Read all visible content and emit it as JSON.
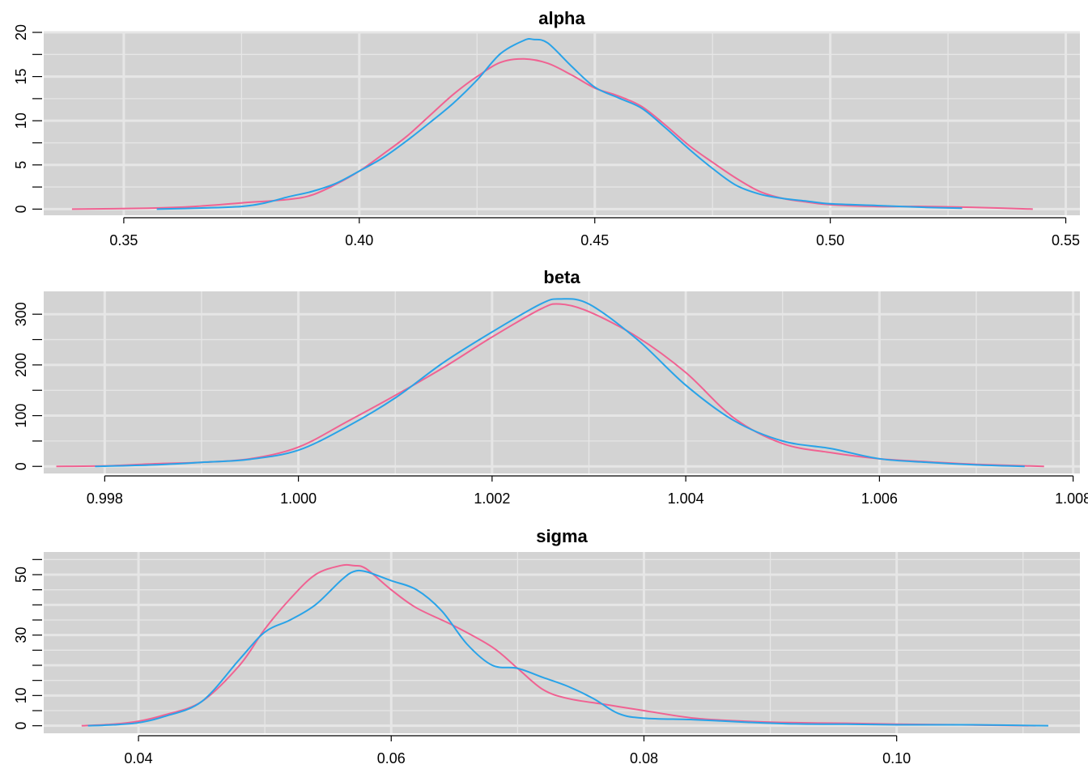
{
  "chart_data": [
    {
      "type": "line",
      "title": "alpha",
      "xlabel": "",
      "ylabel": "",
      "xlim": [
        0.333,
        0.553
      ],
      "ylim": [
        -0.7,
        20.0
      ],
      "x_ticks": [
        0.35,
        0.4,
        0.45,
        0.5,
        0.55
      ],
      "x_tick_labels": [
        "0.35",
        "0.40",
        "0.45",
        "0.50",
        "0.55"
      ],
      "y_ticks": [
        0,
        5,
        10,
        15,
        20
      ],
      "y_tick_labels": [
        "0",
        "5",
        "10",
        "15",
        "20"
      ],
      "grid": true,
      "background": "#d3d3d3",
      "series": [
        {
          "color": "#f06292",
          "x": [
            0.339,
            0.355,
            0.365,
            0.375,
            0.385,
            0.39,
            0.395,
            0.4,
            0.405,
            0.41,
            0.415,
            0.42,
            0.425,
            0.43,
            0.435,
            0.44,
            0.445,
            0.45,
            0.455,
            0.46,
            0.465,
            0.47,
            0.475,
            0.48,
            0.485,
            0.49,
            0.495,
            0.5,
            0.51,
            0.52,
            0.53,
            0.543
          ],
          "values": [
            0.0,
            0.1,
            0.3,
            0.7,
            1.1,
            1.6,
            2.8,
            4.3,
            6.2,
            8.2,
            10.6,
            13.0,
            15.0,
            16.6,
            17.0,
            16.5,
            15.2,
            13.7,
            12.8,
            11.6,
            9.5,
            7.2,
            5.3,
            3.5,
            2.0,
            1.2,
            0.8,
            0.5,
            0.3,
            0.3,
            0.2,
            0.0
          ]
        },
        {
          "color": "#29a3e8",
          "x": [
            0.357,
            0.365,
            0.375,
            0.38,
            0.385,
            0.39,
            0.395,
            0.4,
            0.405,
            0.41,
            0.415,
            0.42,
            0.425,
            0.43,
            0.435,
            0.437,
            0.44,
            0.445,
            0.45,
            0.455,
            0.46,
            0.465,
            0.47,
            0.475,
            0.48,
            0.485,
            0.49,
            0.495,
            0.5,
            0.51,
            0.52,
            0.528
          ],
          "values": [
            0.0,
            0.1,
            0.3,
            0.7,
            1.4,
            2.0,
            2.9,
            4.3,
            5.8,
            7.7,
            9.8,
            12.0,
            14.6,
            17.6,
            19.1,
            19.2,
            18.8,
            16.2,
            13.8,
            12.6,
            11.4,
            9.2,
            6.8,
            4.6,
            2.7,
            1.7,
            1.2,
            0.9,
            0.6,
            0.4,
            0.2,
            0.1
          ]
        }
      ]
    },
    {
      "type": "line",
      "title": "beta",
      "xlabel": "",
      "ylabel": "",
      "xlim": [
        0.99737,
        1.00807
      ],
      "ylim": [
        -14,
        345
      ],
      "x_ticks": [
        0.998,
        1.0,
        1.002,
        1.004,
        1.006,
        1.008
      ],
      "x_tick_labels": [
        "0.998",
        "1.000",
        "1.002",
        "1.004",
        "1.006",
        "1.008"
      ],
      "y_ticks": [
        0,
        100,
        200,
        300
      ],
      "y_tick_labels": [
        "0",
        "100",
        "200",
        "300"
      ],
      "grid": true,
      "background": "#d3d3d3",
      "series": [
        {
          "color": "#f06292",
          "x": [
            0.9975,
            0.998,
            0.9985,
            0.999,
            0.9995,
            1.0,
            1.0005,
            1.001,
            1.0015,
            1.002,
            1.0025,
            1.0027,
            1.003,
            1.0035,
            1.004,
            1.0045,
            1.005,
            1.0055,
            1.006,
            1.0065,
            1.007,
            1.0077
          ],
          "values": [
            0,
            1,
            5,
            8,
            15,
            38,
            88,
            140,
            195,
            255,
            310,
            320,
            305,
            255,
            185,
            95,
            45,
            27,
            15,
            9,
            4,
            0
          ]
        },
        {
          "color": "#29a3e8",
          "x": [
            0.9979,
            0.9985,
            0.999,
            0.9995,
            1.0,
            1.0005,
            1.001,
            1.0015,
            1.002,
            1.0025,
            1.0027,
            1.003,
            1.0035,
            1.004,
            1.0045,
            1.005,
            1.0055,
            1.006,
            1.0065,
            1.007,
            1.0075
          ],
          "values": [
            0,
            3,
            8,
            14,
            32,
            78,
            135,
            205,
            265,
            320,
            330,
            320,
            250,
            160,
            90,
            50,
            35,
            15,
            8,
            3,
            0
          ]
        }
      ]
    },
    {
      "type": "line",
      "title": "sigma",
      "xlabel": "",
      "ylabel": "",
      "xlim": [
        0.0325,
        0.1145
      ],
      "ylim": [
        -2.5,
        57.5
      ],
      "x_ticks": [
        0.04,
        0.06,
        0.08,
        0.1
      ],
      "x_tick_labels": [
        "0.04",
        "0.06",
        "0.08",
        "0.10"
      ],
      "y_ticks": [
        0,
        10,
        30,
        50
      ],
      "y_tick_labels": [
        "0",
        "10",
        "30",
        "50"
      ],
      "grid": true,
      "background": "#d3d3d3",
      "series": [
        {
          "color": "#f06292",
          "x": [
            0.0355,
            0.038,
            0.04,
            0.042,
            0.045,
            0.048,
            0.05,
            0.052,
            0.054,
            0.056,
            0.057,
            0.058,
            0.06,
            0.062,
            0.065,
            0.068,
            0.07,
            0.072,
            0.074,
            0.077,
            0.08,
            0.084,
            0.088,
            0.092,
            0.096,
            0.1,
            0.105,
            0.111
          ],
          "values": [
            0,
            0.5,
            1.5,
            3.5,
            8,
            20,
            32,
            42,
            50,
            53,
            53,
            52,
            45,
            39,
            33,
            26,
            19,
            12,
            9,
            7,
            5,
            2.5,
            1.5,
            1,
            0.8,
            0.5,
            0.3,
            0
          ]
        },
        {
          "color": "#29a3e8",
          "x": [
            0.036,
            0.038,
            0.04,
            0.042,
            0.045,
            0.048,
            0.05,
            0.052,
            0.054,
            0.056,
            0.057,
            0.058,
            0.06,
            0.062,
            0.064,
            0.066,
            0.068,
            0.07,
            0.072,
            0.074,
            0.076,
            0.078,
            0.08,
            0.084,
            0.088,
            0.092,
            0.096,
            0.1,
            0.106,
            0.112
          ],
          "values": [
            0,
            0.3,
            1.0,
            3.0,
            8,
            22,
            31,
            35,
            40,
            48,
            51,
            51,
            48,
            45,
            38,
            27,
            20,
            19,
            16,
            13,
            9,
            4,
            2.5,
            2,
            1.2,
            0.6,
            0.5,
            0.3,
            0.3,
            0
          ]
        }
      ]
    }
  ]
}
